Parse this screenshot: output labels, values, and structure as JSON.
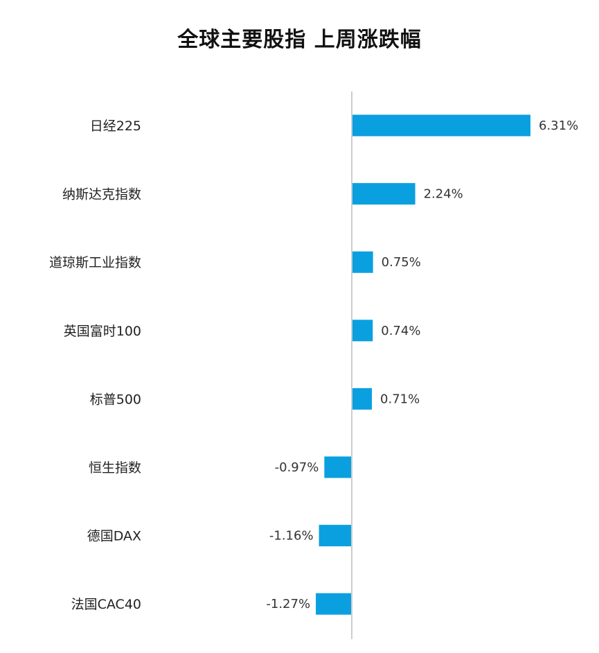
{
  "chart_data": {
    "type": "bar",
    "orientation": "horizontal",
    "title": "全球主要股指 上周涨跌幅",
    "categories": [
      "日经225",
      "纳斯达克指数",
      "道琼斯工业指数",
      "英国富时100",
      "标普500",
      "恒生指数",
      "德国DAX",
      "法国CAC40"
    ],
    "values": [
      6.31,
      2.24,
      0.75,
      0.74,
      0.71,
      -0.97,
      -1.16,
      -1.27
    ],
    "value_labels": [
      "6.31%",
      "2.24%",
      "0.75%",
      "0.74%",
      "0.71%",
      "-0.97%",
      "-1.16%",
      "-1.27%"
    ],
    "unit": "%",
    "bar_color": "#0aa0e0",
    "axis_color": "#cccccc",
    "grid": false,
    "legend": "none"
  }
}
